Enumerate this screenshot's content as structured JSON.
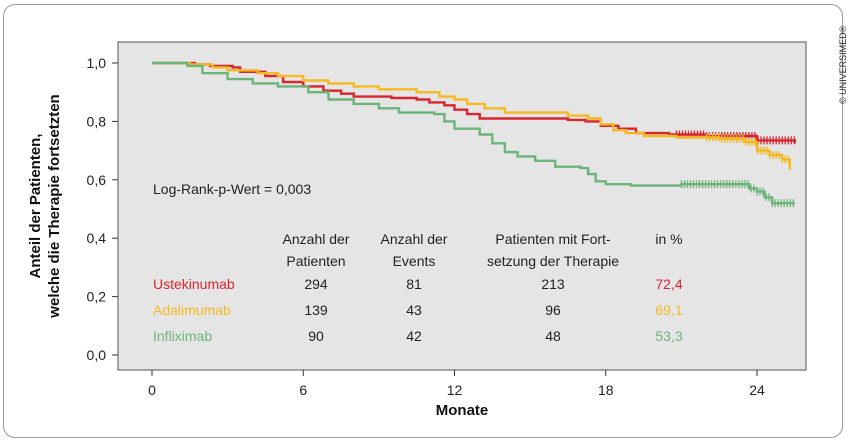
{
  "chart_data": {
    "type": "line",
    "subtype": "kaplan-meier step curves with censor marks",
    "xlabel": "Monate",
    "ylabel_lines": [
      "Anteil der Patienten,",
      "welche die Therapie fortsetzten"
    ],
    "xlim": [
      0,
      26
    ],
    "ylim": [
      0,
      1.05
    ],
    "x_ticks": [
      0,
      6,
      12,
      18,
      24
    ],
    "x_tick_labels": [
      "0",
      "6",
      "12",
      "18",
      "24"
    ],
    "y_ticks": [
      0.0,
      0.2,
      0.4,
      0.6,
      0.8,
      1.0
    ],
    "y_tick_labels": [
      "0,0",
      "0,2",
      "0,4",
      "0,6",
      "0,8",
      "1,0"
    ],
    "grid": false,
    "plot_background": "#e5e5e5",
    "annotation": "Log-Rank-p-Wert = 0,003",
    "series": [
      {
        "name": "Ustekinumab",
        "color": "#d7262e",
        "points": [
          [
            0,
            1.0
          ],
          [
            1.2,
            1.0
          ],
          [
            1.7,
            0.995
          ],
          [
            2.3,
            0.99
          ],
          [
            3.2,
            0.985
          ],
          [
            3.5,
            0.97
          ],
          [
            4.5,
            0.955
          ],
          [
            5.2,
            0.935
          ],
          [
            6.0,
            0.92
          ],
          [
            6.8,
            0.905
          ],
          [
            7.5,
            0.895
          ],
          [
            8.0,
            0.885
          ],
          [
            9.5,
            0.88
          ],
          [
            10.5,
            0.875
          ],
          [
            11.0,
            0.865
          ],
          [
            11.6,
            0.855
          ],
          [
            12.0,
            0.84
          ],
          [
            12.5,
            0.825
          ],
          [
            13.0,
            0.81
          ],
          [
            15.2,
            0.81
          ],
          [
            16.5,
            0.805
          ],
          [
            17.2,
            0.8
          ],
          [
            17.8,
            0.785
          ],
          [
            18.5,
            0.775
          ],
          [
            19.2,
            0.76
          ],
          [
            20.5,
            0.755
          ],
          [
            22.0,
            0.75
          ],
          [
            24.0,
            0.735
          ],
          [
            25.5,
            0.725
          ]
        ],
        "censor_from": 20.8
      },
      {
        "name": "Adalimumab",
        "color": "#f5b921",
        "points": [
          [
            0,
            1.0
          ],
          [
            1.5,
            0.995
          ],
          [
            2.4,
            0.985
          ],
          [
            3.0,
            0.975
          ],
          [
            4.2,
            0.965
          ],
          [
            5.0,
            0.955
          ],
          [
            6.0,
            0.94
          ],
          [
            7.0,
            0.93
          ],
          [
            8.0,
            0.92
          ],
          [
            9.0,
            0.91
          ],
          [
            10.5,
            0.9
          ],
          [
            11.4,
            0.885
          ],
          [
            12.0,
            0.875
          ],
          [
            12.5,
            0.86
          ],
          [
            13.2,
            0.845
          ],
          [
            14.0,
            0.83
          ],
          [
            16.5,
            0.82
          ],
          [
            17.3,
            0.81
          ],
          [
            17.8,
            0.79
          ],
          [
            18.3,
            0.77
          ],
          [
            18.8,
            0.76
          ],
          [
            19.5,
            0.75
          ],
          [
            20.8,
            0.745
          ],
          [
            22.5,
            0.74
          ],
          [
            23.5,
            0.73
          ],
          [
            24.0,
            0.7
          ],
          [
            24.5,
            0.685
          ],
          [
            25.0,
            0.67
          ],
          [
            25.3,
            0.635
          ]
        ],
        "censor_from": 22.0
      },
      {
        "name": "Infliximab",
        "color": "#6cb57a",
        "points": [
          [
            0,
            1.0
          ],
          [
            1.4,
            0.99
          ],
          [
            2.0,
            0.965
          ],
          [
            3.0,
            0.945
          ],
          [
            4.0,
            0.93
          ],
          [
            5.0,
            0.92
          ],
          [
            6.2,
            0.9
          ],
          [
            7.0,
            0.875
          ],
          [
            8.0,
            0.86
          ],
          [
            9.0,
            0.845
          ],
          [
            9.8,
            0.83
          ],
          [
            11.2,
            0.825
          ],
          [
            11.6,
            0.8
          ],
          [
            12.0,
            0.775
          ],
          [
            13.0,
            0.755
          ],
          [
            13.5,
            0.725
          ],
          [
            14.0,
            0.695
          ],
          [
            14.5,
            0.68
          ],
          [
            15.2,
            0.665
          ],
          [
            16.0,
            0.645
          ],
          [
            17.0,
            0.64
          ],
          [
            17.3,
            0.62
          ],
          [
            17.6,
            0.595
          ],
          [
            18.0,
            0.585
          ],
          [
            19.0,
            0.58
          ],
          [
            21.0,
            0.585
          ],
          [
            22.3,
            0.585
          ],
          [
            23.7,
            0.57
          ],
          [
            24.0,
            0.56
          ],
          [
            24.3,
            0.54
          ],
          [
            24.6,
            0.52
          ],
          [
            25.5,
            0.52
          ]
        ],
        "censor_from": 21.0
      }
    ]
  },
  "table": {
    "headers": [
      [
        "Anzahl der",
        "Patienten"
      ],
      [
        "Anzahl der",
        "Events"
      ],
      [
        "Patienten mit Fort-",
        "setzung der Therapie"
      ],
      [
        "in %",
        ""
      ]
    ],
    "rows": [
      {
        "label": "Ustekinumab",
        "color": "#d7262e",
        "values": [
          "294",
          "81",
          "213",
          "72,4"
        ]
      },
      {
        "label": "Adalimumab",
        "color": "#f5b921",
        "values": [
          "139",
          "43",
          "96",
          "69,1"
        ]
      },
      {
        "label": "Infliximab",
        "color": "#6cb57a",
        "values": [
          "90",
          "42",
          "48",
          "53,3"
        ]
      }
    ]
  },
  "copyright": "© UNIVERSIMED®"
}
